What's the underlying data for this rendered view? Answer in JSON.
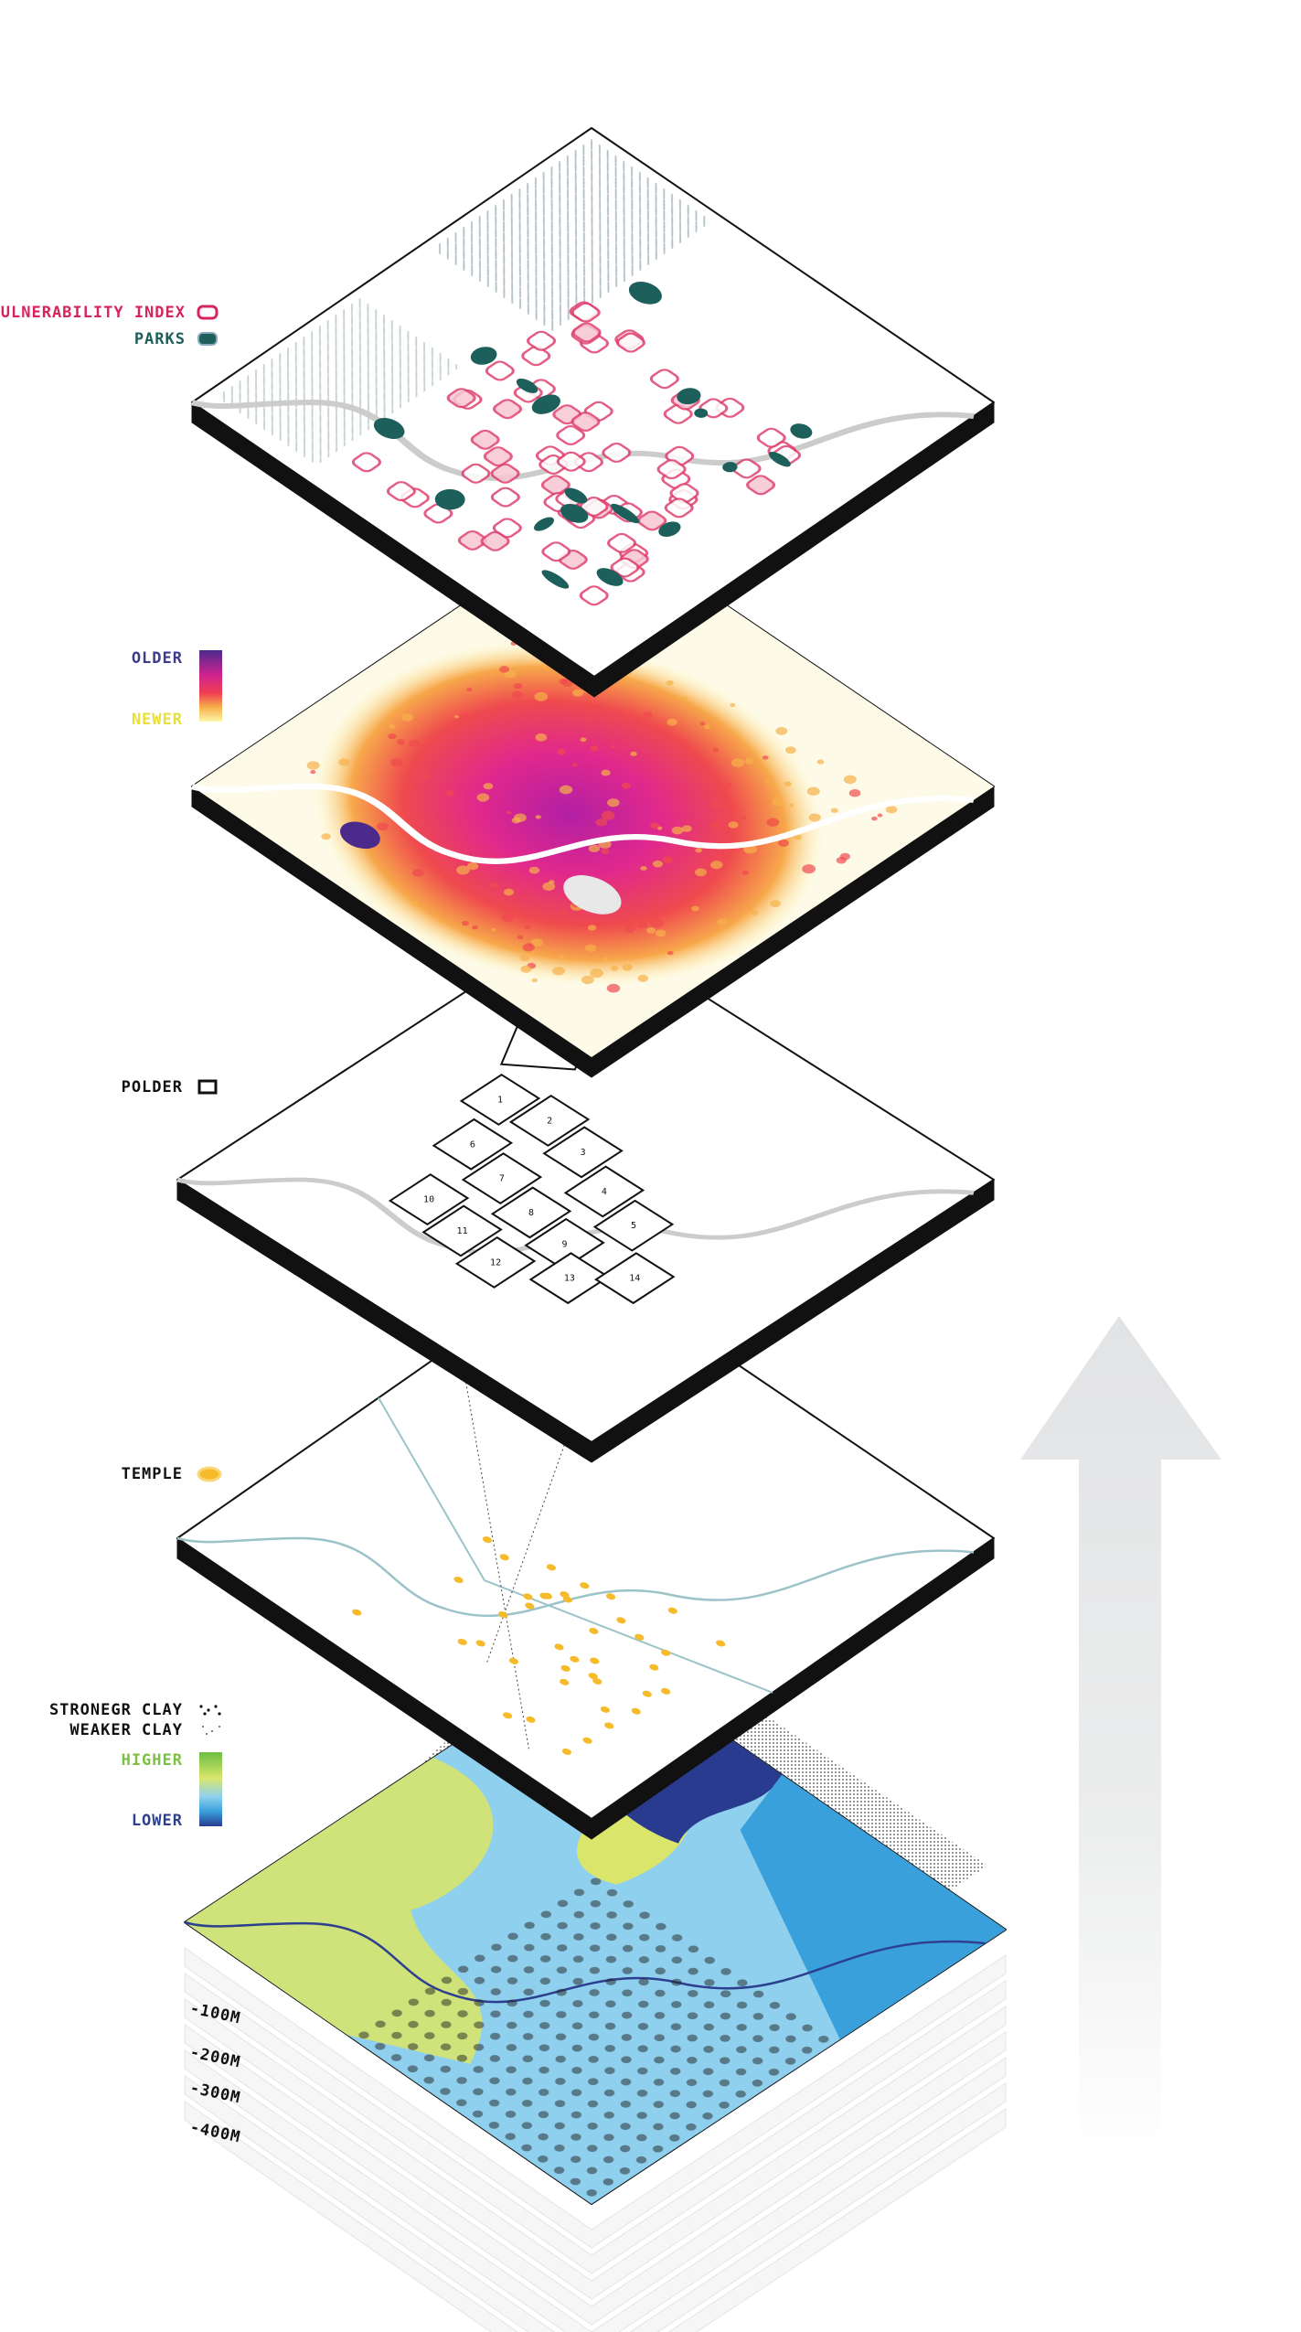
{
  "legends": {
    "vulnerability_index": "VULNERABILITY INDEX",
    "parks": "PARKS",
    "age": {
      "older": "OLDER",
      "newer": "NEWER"
    },
    "polder": "POLDER",
    "temple": "TEMPLE",
    "clay": {
      "stronger": "STRONEGR CLAY",
      "weaker": "WEAKER CLAY"
    },
    "elevation": {
      "higher": "HIGHER",
      "lower": "LOWER"
    }
  },
  "polder_numbers": [
    "1",
    "2",
    "3",
    "4",
    "5",
    "6",
    "7",
    "8",
    "9",
    "10",
    "11",
    "12",
    "13",
    "14"
  ],
  "depth_labels": [
    "-100M",
    "-200M",
    "-300M",
    "-400M"
  ]
}
